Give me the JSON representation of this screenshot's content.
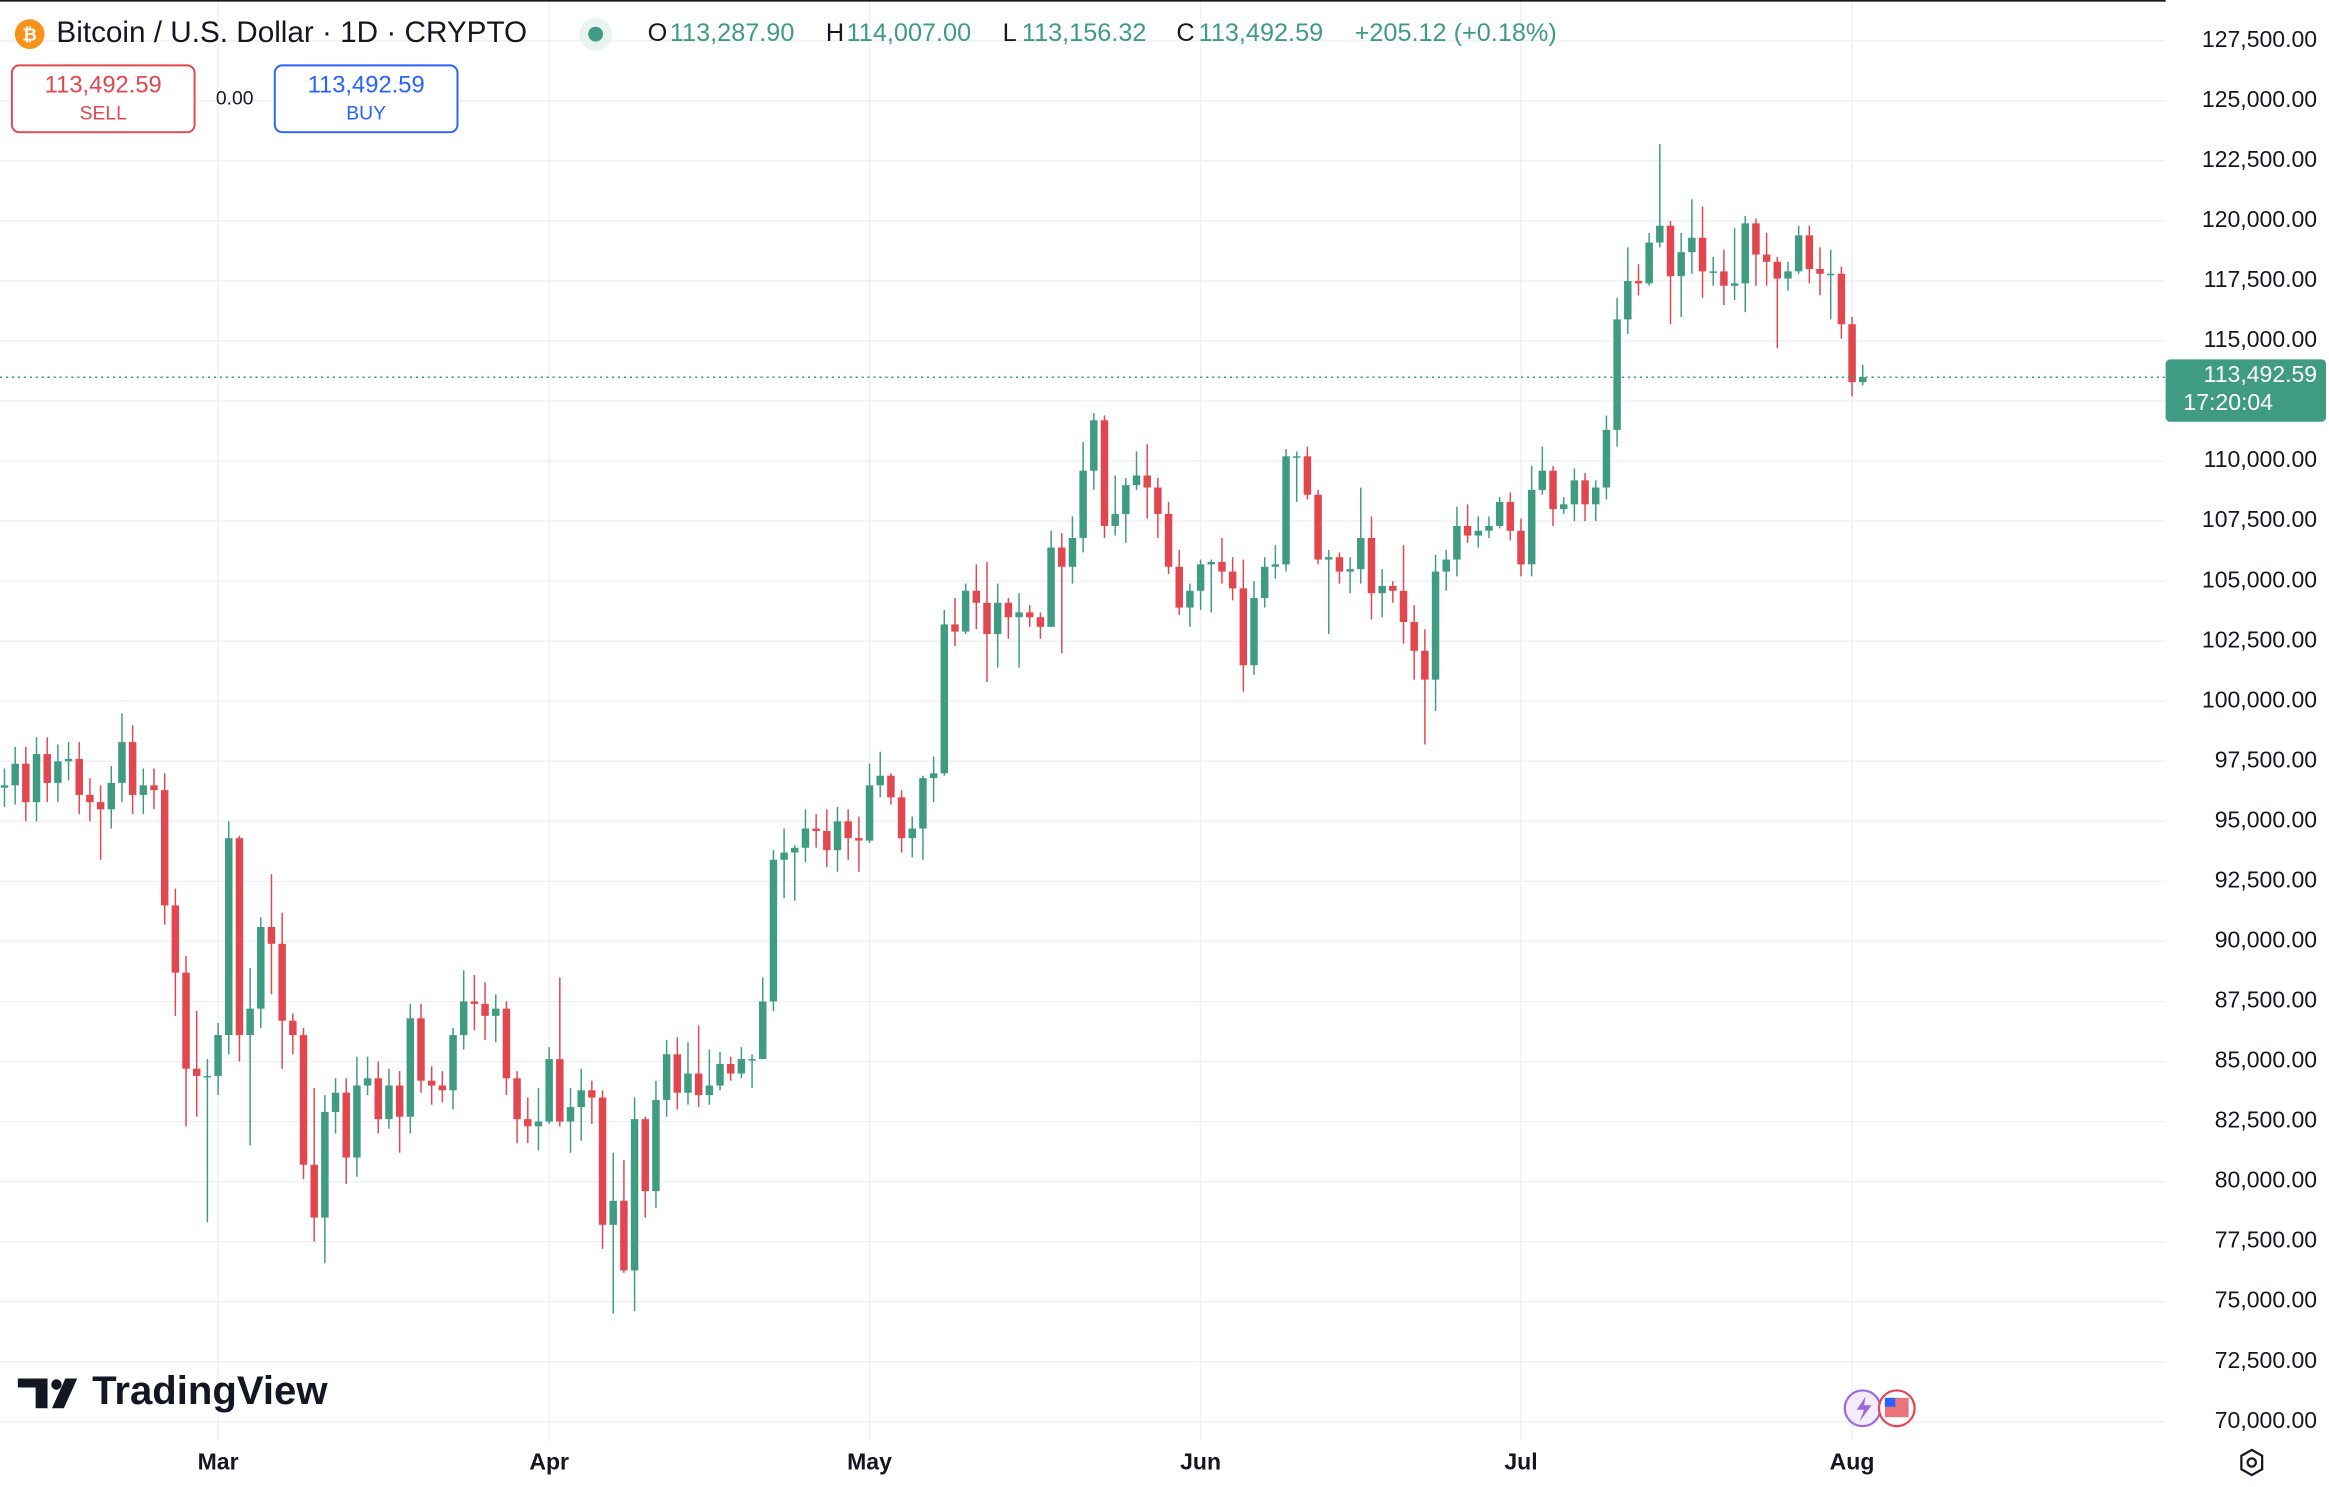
{
  "header": {
    "title": "Bitcoin / U.S. Dollar · 1D · CRYPTO",
    "o_label": "O",
    "o_value": "113,287.90",
    "h_label": "H",
    "h_value": "114,007.00",
    "l_label": "L",
    "l_value": "113,156.32",
    "c_label": "C",
    "c_value": "113,492.59",
    "change": "+205.12 (+0.18%)"
  },
  "trade": {
    "sell_price": "113,492.59",
    "sell": "SELL",
    "spread": "0.00",
    "buy_price": "113,492.59",
    "buy": "BUY"
  },
  "branding": {
    "logo": "TradingView"
  },
  "chart_data": {
    "type": "candlestick",
    "up_color": "#3f9c82",
    "down_color": "#e2474f",
    "grid": true,
    "last_price_label": "113,492.59",
    "countdown": "17:20:04",
    "xlim": [
      -0.42,
      202.36
    ],
    "xticks": [
      {
        "value": 20,
        "label": "Mar"
      },
      {
        "value": 51,
        "label": "Apr"
      },
      {
        "value": 81,
        "label": "May"
      },
      {
        "value": 112,
        "label": "Jun"
      },
      {
        "value": 142,
        "label": "Jul"
      },
      {
        "value": 173,
        "label": "Aug"
      }
    ],
    "ylim": [
      69200,
      129200
    ],
    "yticks": [
      {
        "value": 70000,
        "label": "70,000.00"
      },
      {
        "value": 72500,
        "label": "72,500.00"
      },
      {
        "value": 75000,
        "label": "75,000.00"
      },
      {
        "value": 77500,
        "label": "77,500.00"
      },
      {
        "value": 80000,
        "label": "80,000.00"
      },
      {
        "value": 82500,
        "label": "82,500.00"
      },
      {
        "value": 85000,
        "label": "85,000.00"
      },
      {
        "value": 87500,
        "label": "87,500.00"
      },
      {
        "value": 90000,
        "label": "90,000.00"
      },
      {
        "value": 92500,
        "label": "92,500.00"
      },
      {
        "value": 95000,
        "label": "95,000.00"
      },
      {
        "value": 97500,
        "label": "97,500.00"
      },
      {
        "value": 100000,
        "label": "100,000.00"
      },
      {
        "value": 102500,
        "label": "102,500.00"
      },
      {
        "value": 105000,
        "label": "105,000.00"
      },
      {
        "value": 107500,
        "label": "107,500.00"
      },
      {
        "value": 110000,
        "label": "110,000.00"
      },
      {
        "value": 112500,
        "label": "112,500.00"
      },
      {
        "value": 115000,
        "label": "115,000.00"
      },
      {
        "value": 117500,
        "label": "117,500.00"
      },
      {
        "value": 120000,
        "label": "120,000.00"
      },
      {
        "value": 122500,
        "label": "122,500.00"
      },
      {
        "value": 125000,
        "label": "125,000.00"
      },
      {
        "value": 127500,
        "label": "127,500.00"
      }
    ],
    "ohlc": [
      [
        96400,
        97200,
        95600,
        96500
      ],
      [
        96500,
        98100,
        95700,
        97400
      ],
      [
        97400,
        98100,
        95000,
        95800
      ],
      [
        95800,
        98500,
        95000,
        97800
      ],
      [
        97800,
        98500,
        95800,
        96600
      ],
      [
        96600,
        98200,
        95800,
        97500
      ],
      [
        97500,
        98300,
        96700,
        97600
      ],
      [
        97600,
        98300,
        95300,
        96100
      ],
      [
        96100,
        96800,
        95000,
        95800
      ],
      [
        95800,
        96500,
        93400,
        95500
      ],
      [
        95500,
        97300,
        94700,
        96600
      ],
      [
        96600,
        99500,
        95800,
        98300
      ],
      [
        98300,
        99000,
        95300,
        96100
      ],
      [
        96100,
        97200,
        95300,
        96500
      ],
      [
        96500,
        97200,
        95500,
        96300
      ],
      [
        96300,
        97000,
        90700,
        91500
      ],
      [
        91500,
        92200,
        86900,
        88700
      ],
      [
        88700,
        89400,
        82300,
        84700
      ],
      [
        84700,
        87100,
        82700,
        84400
      ],
      [
        84400,
        85100,
        78300,
        84400
      ],
      [
        84400,
        86600,
        83600,
        86100
      ],
      [
        86100,
        95000,
        85300,
        94300
      ],
      [
        94300,
        94400,
        85000,
        86100
      ],
      [
        86100,
        88900,
        81500,
        87200
      ],
      [
        87200,
        91000,
        86400,
        90600
      ],
      [
        90600,
        92800,
        87800,
        89900
      ],
      [
        89900,
        91200,
        84700,
        86700
      ],
      [
        86700,
        87000,
        85300,
        86100
      ],
      [
        86100,
        86400,
        80100,
        80700
      ],
      [
        80700,
        83900,
        77500,
        78500
      ],
      [
        78500,
        83600,
        76600,
        82900
      ],
      [
        82900,
        84300,
        82000,
        83700
      ],
      [
        83700,
        84300,
        79900,
        81000
      ],
      [
        81000,
        85200,
        80200,
        84000
      ],
      [
        84000,
        85200,
        83600,
        84300
      ],
      [
        84300,
        85000,
        82000,
        82600
      ],
      [
        82600,
        84700,
        82200,
        84000
      ],
      [
        84000,
        84600,
        81200,
        82700
      ],
      [
        82700,
        87400,
        82000,
        86800
      ],
      [
        86800,
        87400,
        83700,
        84200
      ],
      [
        84200,
        84800,
        83200,
        84000
      ],
      [
        84000,
        84600,
        83300,
        83800
      ],
      [
        83800,
        86400,
        83000,
        86100
      ],
      [
        86100,
        88800,
        85500,
        87500
      ],
      [
        87500,
        88600,
        86300,
        87400
      ],
      [
        87400,
        88300,
        85900,
        86900
      ],
      [
        86900,
        87800,
        85800,
        87200
      ],
      [
        87200,
        87500,
        83600,
        84300
      ],
      [
        84300,
        84600,
        81600,
        82600
      ],
      [
        82600,
        83500,
        81600,
        82300
      ],
      [
        82300,
        83900,
        81300,
        82500
      ],
      [
        82500,
        85600,
        82400,
        85100
      ],
      [
        85100,
        88500,
        82300,
        82500
      ],
      [
        82500,
        83900,
        81200,
        83100
      ],
      [
        83100,
        84700,
        81700,
        83800
      ],
      [
        83800,
        84200,
        82400,
        83500
      ],
      [
        83500,
        83800,
        77200,
        78200
      ],
      [
        78200,
        81200,
        74500,
        79200
      ],
      [
        79200,
        80900,
        76200,
        76300
      ],
      [
        76300,
        83500,
        74600,
        82600
      ],
      [
        82600,
        82700,
        78500,
        79600
      ],
      [
        79600,
        84200,
        78900,
        83400
      ],
      [
        83400,
        85900,
        82700,
        85300
      ],
      [
        85300,
        86000,
        83000,
        83700
      ],
      [
        83700,
        85800,
        83200,
        84500
      ],
      [
        84500,
        86500,
        83100,
        83600
      ],
      [
        83600,
        85500,
        83200,
        84000
      ],
      [
        84000,
        85400,
        83800,
        84900
      ],
      [
        84900,
        85200,
        84200,
        84500
      ],
      [
        84500,
        85600,
        84300,
        85100
      ],
      [
        85100,
        85300,
        83900,
        85100
      ],
      [
        85100,
        88500,
        85100,
        87500
      ],
      [
        87500,
        93800,
        87100,
        93400
      ],
      [
        93400,
        94700,
        91800,
        93700
      ],
      [
        93700,
        94000,
        91700,
        93900
      ],
      [
        93900,
        95500,
        93300,
        94700
      ],
      [
        94700,
        95300,
        93900,
        94600
      ],
      [
        94600,
        95500,
        93100,
        93800
      ],
      [
        93800,
        95600,
        92900,
        95000
      ],
      [
        95000,
        95500,
        93400,
        94300
      ],
      [
        94300,
        95200,
        92900,
        94200
      ],
      [
        94200,
        97400,
        94100,
        96500
      ],
      [
        96500,
        97900,
        96000,
        96900
      ],
      [
        96900,
        97000,
        95700,
        96000
      ],
      [
        96000,
        96300,
        93700,
        94300
      ],
      [
        94300,
        95200,
        93500,
        94700
      ],
      [
        94700,
        96900,
        93400,
        96800
      ],
      [
        96800,
        97700,
        95800,
        97000
      ],
      [
        97000,
        103800,
        96900,
        103200
      ],
      [
        103200,
        104300,
        102300,
        102900
      ],
      [
        102900,
        104900,
        102800,
        104600
      ],
      [
        104600,
        105700,
        103000,
        104100
      ],
      [
        104100,
        105800,
        100800,
        102800
      ],
      [
        102800,
        104900,
        101400,
        104100
      ],
      [
        104100,
        104300,
        102600,
        103500
      ],
      [
        103500,
        104500,
        101400,
        103700
      ],
      [
        103700,
        104000,
        103100,
        103500
      ],
      [
        103500,
        103700,
        102600,
        103100
      ],
      [
        103100,
        107100,
        103100,
        106400
      ],
      [
        106400,
        107000,
        102000,
        105600
      ],
      [
        105600,
        107700,
        104900,
        106800
      ],
      [
        106800,
        110800,
        106200,
        109600
      ],
      [
        109600,
        112000,
        108800,
        111700
      ],
      [
        111700,
        111900,
        106800,
        107300
      ],
      [
        107300,
        109400,
        106900,
        107800
      ],
      [
        107800,
        109300,
        106600,
        109000
      ],
      [
        109000,
        110400,
        108800,
        109400
      ],
      [
        109400,
        110700,
        107600,
        108900
      ],
      [
        108900,
        109300,
        106800,
        107800
      ],
      [
        107800,
        108300,
        105300,
        105600
      ],
      [
        105600,
        106300,
        103600,
        103900
      ],
      [
        103900,
        104900,
        103100,
        104600
      ],
      [
        104600,
        105900,
        103800,
        105700
      ],
      [
        105700,
        105900,
        103700,
        105800
      ],
      [
        105800,
        106800,
        104900,
        105400
      ],
      [
        105400,
        106000,
        104200,
        104700
      ],
      [
        104700,
        105900,
        100400,
        101500
      ],
      [
        101500,
        105000,
        101100,
        104300
      ],
      [
        104300,
        106000,
        103900,
        105600
      ],
      [
        105600,
        106500,
        105100,
        105700
      ],
      [
        105700,
        110500,
        105400,
        110200
      ],
      [
        110200,
        110400,
        108300,
        110200
      ],
      [
        110200,
        110600,
        108400,
        108600
      ],
      [
        108600,
        108800,
        105700,
        105900
      ],
      [
        105900,
        106300,
        102800,
        106000
      ],
      [
        106000,
        106200,
        104900,
        105400
      ],
      [
        105400,
        106000,
        104500,
        105500
      ],
      [
        105500,
        108900,
        104900,
        106800
      ],
      [
        106800,
        107700,
        103400,
        104500
      ],
      [
        104500,
        105500,
        103500,
        104800
      ],
      [
        104800,
        105000,
        104100,
        104600
      ],
      [
        104600,
        106500,
        102400,
        103300
      ],
      [
        103300,
        104000,
        100900,
        102100
      ],
      [
        102100,
        103000,
        98200,
        100900
      ],
      [
        100900,
        106100,
        99600,
        105400
      ],
      [
        105400,
        106300,
        104600,
        105900
      ],
      [
        105900,
        108100,
        105200,
        107300
      ],
      [
        107300,
        108200,
        106600,
        106900
      ],
      [
        106900,
        107700,
        106400,
        107100
      ],
      [
        107100,
        107700,
        106800,
        107300
      ],
      [
        107300,
        108500,
        107200,
        108300
      ],
      [
        108300,
        108700,
        106700,
        107100
      ],
      [
        107100,
        107600,
        105200,
        105700
      ],
      [
        105700,
        109800,
        105200,
        108800
      ],
      [
        108800,
        110600,
        108600,
        109600
      ],
      [
        109600,
        109800,
        107300,
        108000
      ],
      [
        108000,
        108500,
        107800,
        108200
      ],
      [
        108200,
        109700,
        107500,
        109200
      ],
      [
        109200,
        109500,
        107500,
        108200
      ],
      [
        108200,
        109200,
        107500,
        108900
      ],
      [
        108900,
        111900,
        108400,
        111300
      ],
      [
        111300,
        116800,
        110600,
        115900
      ],
      [
        115900,
        118900,
        115300,
        117500
      ],
      [
        117500,
        118200,
        116900,
        117400
      ],
      [
        117400,
        119500,
        117300,
        119100
      ],
      [
        119100,
        123200,
        118900,
        119800
      ],
      [
        119800,
        120000,
        115700,
        117700
      ],
      [
        117700,
        119500,
        116000,
        118700
      ],
      [
        118700,
        120900,
        117800,
        119300
      ],
      [
        119300,
        120600,
        116800,
        117900
      ],
      [
        117900,
        118500,
        117300,
        117900
      ],
      [
        117900,
        118800,
        116500,
        117300
      ],
      [
        117300,
        119700,
        116700,
        117400
      ],
      [
        117400,
        120200,
        116200,
        119900
      ],
      [
        119900,
        120100,
        117300,
        118600
      ],
      [
        118600,
        119500,
        117300,
        118300
      ],
      [
        118300,
        118500,
        114700,
        117600
      ],
      [
        117600,
        118300,
        117100,
        117900
      ],
      [
        117900,
        119800,
        117800,
        119400
      ],
      [
        119400,
        119800,
        117400,
        118000
      ],
      [
        118000,
        118900,
        116900,
        117800
      ],
      [
        117800,
        118800,
        115900,
        117800
      ],
      [
        117800,
        118100,
        115100,
        115700
      ],
      [
        115700,
        116000,
        112700,
        113288
      ],
      [
        113287.9,
        114007,
        113156.32,
        113492.59
      ]
    ]
  }
}
